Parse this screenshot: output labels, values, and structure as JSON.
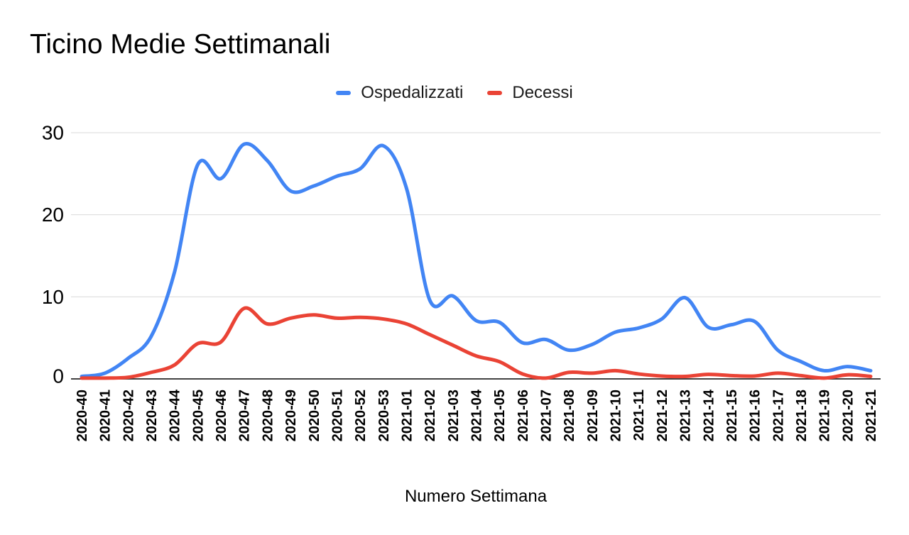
{
  "title": "Ticino Medie Settimanali",
  "legend": {
    "items": [
      {
        "label": "Ospedalizzati",
        "color": "#4285F4"
      },
      {
        "label": "Decessi",
        "color": "#EA4335"
      }
    ]
  },
  "axes": {
    "x_title": "Numero Settimana",
    "y_tick_labels": [
      "0",
      "10",
      "20",
      "30"
    ]
  },
  "colors": {
    "gridline": "#d9d9d9",
    "axis_line": "#424242",
    "tick_text": "#000000"
  },
  "chart_data": {
    "type": "line",
    "title": "Ticino Medie Settimanali",
    "xlabel": "Numero Settimana",
    "ylabel": "",
    "ylim": [
      0,
      30
    ],
    "yticks": [
      0,
      10,
      20,
      30
    ],
    "grid": true,
    "smooth": true,
    "legend_position": "top",
    "categories": [
      "2020-40",
      "2020-41",
      "2020-42",
      "2020-43",
      "2020-44",
      "2020-45",
      "2020-46",
      "2020-47",
      "2020-48",
      "2020-49",
      "2020-50",
      "2020-51",
      "2020-52",
      "2020-53",
      "2021-01",
      "2021-02",
      "2021-03",
      "2021-04",
      "2021-05",
      "2021-06",
      "2021-07",
      "2021-08",
      "2021-09",
      "2021-10",
      "2021-11",
      "2021-12",
      "2021-13",
      "2021-14",
      "2021-15",
      "2021-16",
      "2021-17",
      "2021-18",
      "2021-19",
      "2021-20",
      "2021-21"
    ],
    "series": [
      {
        "name": "Ospedalizzati",
        "color": "#4285F4",
        "values": [
          0.3,
          0.7,
          2.5,
          5.2,
          13,
          26.1,
          24.4,
          28.6,
          26.6,
          22.9,
          23.5,
          24.7,
          25.6,
          28.4,
          23.2,
          9.6,
          10.1,
          7.1,
          6.9,
          4.4,
          4.8,
          3.5,
          4.2,
          5.7,
          6.2,
          7.3,
          9.9,
          6.3,
          6.6,
          7.0,
          3.5,
          2.1,
          1.0,
          1.5,
          1.0
        ]
      },
      {
        "name": "Decessi",
        "color": "#EA4335",
        "values": [
          0.1,
          0.1,
          0.2,
          0.8,
          1.7,
          4.3,
          4.5,
          8.6,
          6.7,
          7.4,
          7.8,
          7.4,
          7.5,
          7.3,
          6.7,
          5.4,
          4.1,
          2.8,
          2.1,
          0.6,
          0.1,
          0.8,
          0.7,
          1.0,
          0.6,
          0.35,
          0.3,
          0.55,
          0.4,
          0.35,
          0.7,
          0.4,
          0.1,
          0.5,
          0.3
        ]
      }
    ]
  }
}
